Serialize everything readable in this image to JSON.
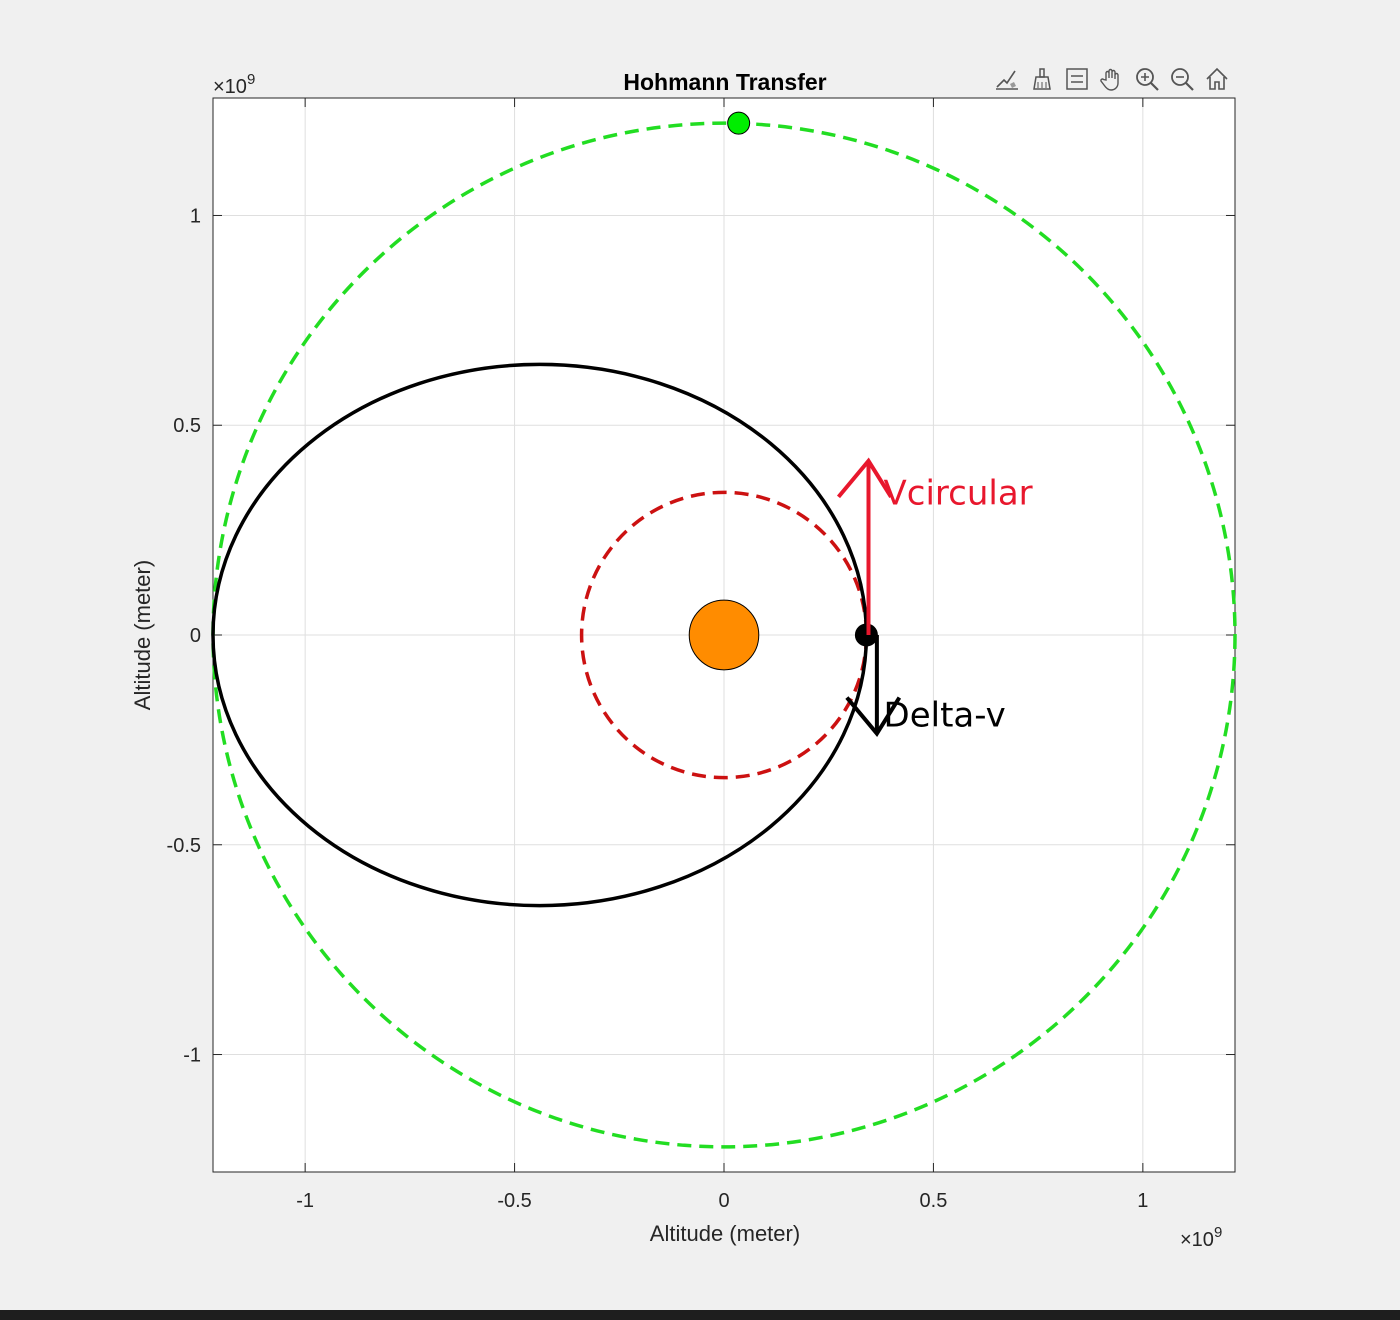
{
  "toolbar": {
    "items": [
      {
        "icon": "data-tips-icon"
      },
      {
        "icon": "brush-icon"
      },
      {
        "icon": "legend-icon"
      },
      {
        "icon": "pan-hand-icon"
      },
      {
        "icon": "zoom-in-icon"
      },
      {
        "icon": "zoom-out-icon"
      },
      {
        "icon": "home-icon"
      }
    ]
  },
  "chart_data": {
    "type": "line",
    "title": "Hohmann Transfer",
    "xlabel": "Altitude (meter)",
    "ylabel": "Altitude (meter)",
    "x_exponent_label": "×10",
    "y_exponent_label": "×10",
    "exponent": "9",
    "xlim": [
      -1.22,
      1.22
    ],
    "ylim": [
      -1.28,
      1.28
    ],
    "xticks": [
      -1,
      -0.5,
      0,
      0.5,
      1
    ],
    "yticks": [
      -1,
      -0.5,
      0,
      0.5,
      1
    ],
    "xtick_labels": [
      "-1",
      "-0.5",
      "0",
      "0.5",
      "1"
    ],
    "ytick_labels": [
      "-1",
      "-0.5",
      "0",
      "0.5",
      "1"
    ],
    "grid": true,
    "series": [
      {
        "kind": "circle",
        "style": "dashed",
        "color": "#22dd22",
        "center": [
          0,
          0
        ],
        "radius": 1.22
      },
      {
        "kind": "circle",
        "style": "dashed",
        "color": "#cc1111",
        "center": [
          0,
          0
        ],
        "radius": 0.34
      },
      {
        "kind": "ellipse",
        "style": "solid",
        "color": "#000000",
        "center": [
          -0.44,
          0
        ],
        "rx": 0.78,
        "ry": 0.645
      }
    ],
    "markers": [
      {
        "kind": "sun",
        "x": 0,
        "y": 0,
        "radius": 0.083,
        "color": "#ff8c00"
      },
      {
        "kind": "dot",
        "x": 0.035,
        "y": 1.22,
        "color": "#00ee00"
      },
      {
        "kind": "dot",
        "x": 0.34,
        "y": 0,
        "color": "#000000"
      }
    ],
    "annotations": [
      {
        "label": "Vcircular",
        "color": "#e8172d",
        "x0": 0.345,
        "y0": 0,
        "x1": 0.345,
        "y1": 0.415,
        "text_x": 0.4,
        "text_y": 0.34
      },
      {
        "label": "Delta-v",
        "color": "#000000",
        "x0": 0.365,
        "y0": 0,
        "x1": 0.365,
        "y1": -0.235,
        "text_x": 0.4,
        "text_y": -0.19
      }
    ]
  }
}
